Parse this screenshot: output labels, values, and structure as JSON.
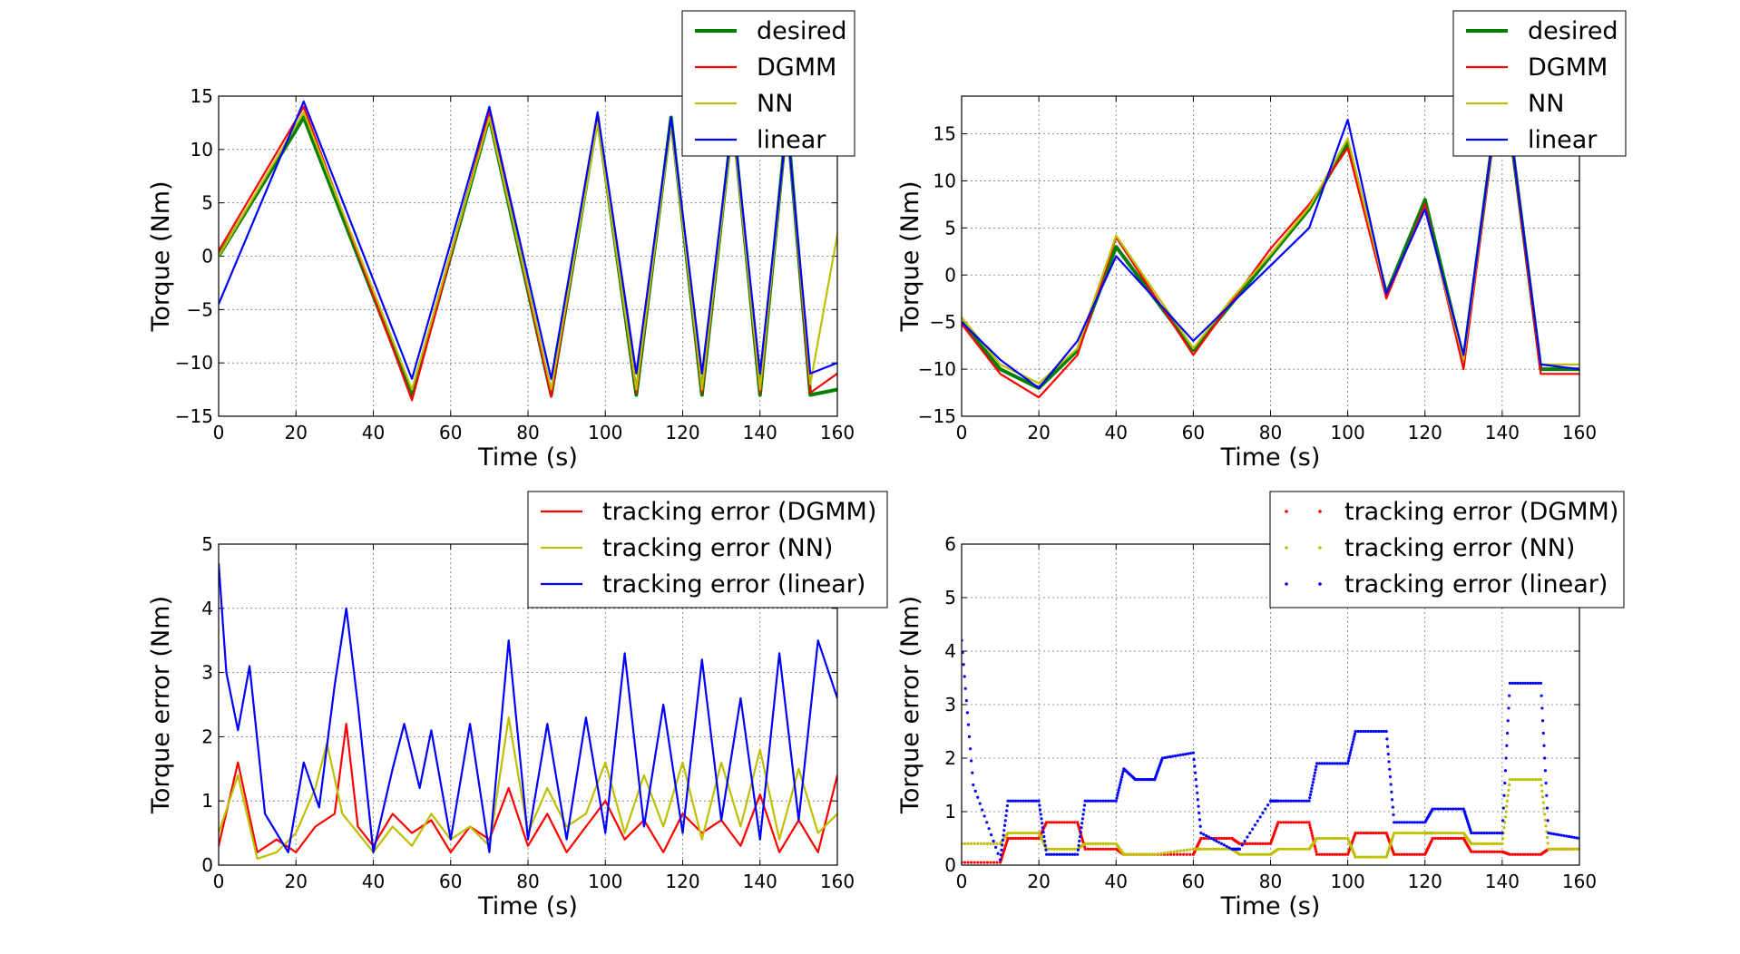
{
  "chart_data": [
    {
      "type": "line",
      "xlabel": "Time (s)",
      "ylabel": "Torque (Nm)",
      "xlim": [
        0,
        160
      ],
      "ylim": [
        -15,
        15
      ],
      "xticks": [
        "0",
        "20",
        "40",
        "60",
        "80",
        "100",
        "120",
        "140",
        "160"
      ],
      "yticks": [
        "−15",
        "−10",
        "−5",
        "0",
        "5",
        "10",
        "15"
      ],
      "grid": true,
      "legend": "top-right",
      "series": [
        {
          "name": "desired",
          "color": "#008000",
          "style": "thick-line",
          "x": [
            0,
            22,
            50,
            70,
            86,
            98,
            108,
            117,
            125,
            133,
            140,
            147,
            153,
            160
          ],
          "y": [
            0,
            13,
            -13,
            13,
            -13,
            13,
            -13,
            13,
            -13,
            13,
            -13,
            13,
            -13,
            -12.5
          ]
        },
        {
          "name": "DGMM",
          "color": "#ff0000",
          "style": "line",
          "x": [
            0,
            22,
            50,
            70,
            86,
            98,
            108,
            117,
            125,
            133,
            140,
            147,
            153,
            160
          ],
          "y": [
            0.5,
            14,
            -13.5,
            13.5,
            -13.2,
            13.2,
            -12.8,
            12.8,
            -12.8,
            12.8,
            -12.8,
            12.8,
            -12.8,
            -11
          ]
        },
        {
          "name": "NN",
          "color": "#bfbf00",
          "style": "line",
          "x": [
            0,
            22,
            50,
            70,
            86,
            98,
            108,
            117,
            125,
            133,
            140,
            147,
            153,
            160
          ],
          "y": [
            0,
            13.5,
            -12.5,
            13,
            -12.5,
            12.5,
            -12.5,
            12.5,
            -12.5,
            12.5,
            -12.5,
            12.5,
            -12,
            2
          ]
        },
        {
          "name": "linear",
          "color": "#0000ff",
          "style": "line",
          "x": [
            0,
            22,
            50,
            70,
            86,
            98,
            108,
            117,
            125,
            133,
            140,
            147,
            153,
            160
          ],
          "y": [
            -4.5,
            14.5,
            -11.5,
            14,
            -11.5,
            13.5,
            -11,
            13,
            -11,
            13,
            -11,
            12.5,
            -11,
            -10
          ]
        }
      ]
    },
    {
      "type": "line",
      "xlabel": "Time (s)",
      "ylabel": "Torque (Nm)",
      "xlim": [
        0,
        160
      ],
      "ylim": [
        -15,
        19
      ],
      "xticks": [
        "0",
        "20",
        "40",
        "60",
        "80",
        "100",
        "120",
        "140",
        "160"
      ],
      "yticks": [
        "−15",
        "−10",
        "−5",
        "0",
        "5",
        "10",
        "15"
      ],
      "grid": true,
      "legend": "top-right",
      "series": [
        {
          "name": "desired",
          "color": "#008000",
          "style": "thick-line",
          "x": [
            0,
            10,
            20,
            30,
            40,
            60,
            70,
            80,
            90,
            100,
            110,
            120,
            130,
            140,
            150,
            160
          ],
          "y": [
            -5,
            -10,
            -12,
            -8,
            3,
            -8,
            -3,
            2,
            7,
            14,
            -2,
            8,
            -9,
            22,
            -10,
            -10
          ]
        },
        {
          "name": "DGMM",
          "color": "#ff0000",
          "style": "line",
          "x": [
            0,
            10,
            20,
            30,
            40,
            60,
            70,
            80,
            90,
            100,
            110,
            120,
            130,
            140,
            150,
            160
          ],
          "y": [
            -5.2,
            -10.5,
            -13,
            -8.5,
            4,
            -8.5,
            -2.8,
            2.8,
            7.5,
            13.5,
            -2.5,
            7.5,
            -10,
            22,
            -10.5,
            -10.5
          ]
        },
        {
          "name": "NN",
          "color": "#bfbf00",
          "style": "line",
          "x": [
            0,
            10,
            20,
            30,
            40,
            60,
            70,
            80,
            90,
            100,
            110,
            120,
            130,
            140,
            150,
            160
          ],
          "y": [
            -4.5,
            -9.5,
            -11.5,
            -7.8,
            4.2,
            -7.8,
            -2.5,
            2.2,
            7.2,
            14.5,
            -2,
            7,
            -9,
            22,
            -9.5,
            -9.5
          ]
        },
        {
          "name": "linear",
          "color": "#0000ff",
          "style": "line",
          "x": [
            0,
            10,
            20,
            30,
            40,
            60,
            70,
            80,
            90,
            100,
            110,
            120,
            130,
            140,
            150,
            160
          ],
          "y": [
            -5,
            -9,
            -12,
            -7,
            2,
            -7,
            -3,
            1,
            5,
            16.5,
            -2,
            7,
            -8.5,
            22,
            -9.5,
            -10
          ]
        }
      ]
    },
    {
      "type": "line",
      "xlabel": "Time (s)",
      "ylabel": "Torque error (Nm)",
      "xlim": [
        0,
        160
      ],
      "ylim": [
        0,
        5
      ],
      "xticks": [
        "0",
        "20",
        "40",
        "60",
        "80",
        "100",
        "120",
        "140",
        "160"
      ],
      "yticks": [
        "0",
        "1",
        "2",
        "3",
        "4",
        "5"
      ],
      "grid": true,
      "legend": "top-right",
      "series": [
        {
          "name": "tracking error (DGMM)",
          "color": "#ff0000",
          "style": "line",
          "x": [
            0,
            5,
            10,
            15,
            20,
            25,
            30,
            33,
            36,
            40,
            45,
            50,
            55,
            60,
            65,
            70,
            75,
            80,
            85,
            90,
            95,
            100,
            105,
            110,
            115,
            120,
            125,
            130,
            135,
            140,
            145,
            150,
            155,
            160
          ],
          "y": [
            0.3,
            1.6,
            0.2,
            0.4,
            0.2,
            0.6,
            0.8,
            2.2,
            0.6,
            0.3,
            0.8,
            0.5,
            0.7,
            0.2,
            0.6,
            0.4,
            1.2,
            0.3,
            0.8,
            0.2,
            0.6,
            1,
            0.4,
            0.7,
            0.2,
            0.8,
            0.5,
            0.7,
            0.3,
            1.1,
            0.2,
            0.7,
            0.2,
            1.4
          ]
        },
        {
          "name": "tracking error (NN)",
          "color": "#bfbf00",
          "style": "line",
          "x": [
            0,
            5,
            10,
            15,
            20,
            25,
            28,
            32,
            36,
            40,
            45,
            50,
            55,
            60,
            65,
            70,
            75,
            80,
            85,
            90,
            95,
            100,
            105,
            110,
            115,
            120,
            125,
            130,
            135,
            140,
            145,
            150,
            155,
            160
          ],
          "y": [
            0.5,
            1.4,
            0.1,
            0.2,
            0.5,
            1.2,
            1.9,
            0.8,
            0.5,
            0.2,
            0.6,
            0.3,
            0.8,
            0.4,
            0.6,
            0.3,
            2.3,
            0.5,
            1.2,
            0.6,
            0.8,
            1.6,
            0.5,
            1.4,
            0.6,
            1.6,
            0.4,
            1.6,
            0.6,
            1.8,
            0.4,
            1.5,
            0.5,
            0.8
          ]
        },
        {
          "name": "tracking error (linear)",
          "color": "#0000ff",
          "style": "line",
          "x": [
            0,
            2,
            5,
            8,
            12,
            18,
            22,
            26,
            30,
            33,
            36,
            40,
            45,
            48,
            52,
            55,
            60,
            65,
            70,
            75,
            80,
            85,
            90,
            95,
            100,
            105,
            110,
            115,
            120,
            125,
            130,
            135,
            140,
            145,
            150,
            155,
            160
          ],
          "y": [
            4.7,
            3,
            2.1,
            3.1,
            0.8,
            0.2,
            1.6,
            0.9,
            2.8,
            4,
            2.5,
            0.2,
            1.5,
            2.2,
            1.2,
            2.1,
            0.4,
            2.2,
            0.2,
            3.5,
            0.4,
            2.2,
            0.4,
            2.3,
            0.5,
            3.3,
            0.6,
            2.5,
            0.5,
            3.2,
            0.7,
            2.6,
            0.4,
            3.3,
            0.7,
            3.5,
            2.6
          ]
        }
      ]
    },
    {
      "type": "scatter",
      "xlabel": "Time (s)",
      "ylabel": "Torque error (Nm)",
      "xlim": [
        0,
        160
      ],
      "ylim": [
        0,
        6
      ],
      "xticks": [
        "0",
        "20",
        "40",
        "60",
        "80",
        "100",
        "120",
        "140",
        "160"
      ],
      "yticks": [
        "0",
        "1",
        "2",
        "3",
        "4",
        "5",
        "6"
      ],
      "grid": true,
      "legend": "top-right",
      "series": [
        {
          "name": "tracking error (DGMM)",
          "color": "#ff0000",
          "style": "dots",
          "x": [
            0,
            10,
            12,
            20,
            22,
            30,
            32,
            40,
            42,
            50,
            60,
            62,
            70,
            72,
            80,
            82,
            90,
            92,
            100,
            102,
            110,
            112,
            120,
            122,
            130,
            132,
            140,
            142,
            150,
            152,
            160
          ],
          "y": [
            0.05,
            0.05,
            0.5,
            0.5,
            0.8,
            0.8,
            0.3,
            0.3,
            0.2,
            0.2,
            0.2,
            0.5,
            0.5,
            0.4,
            0.4,
            0.8,
            0.8,
            0.2,
            0.2,
            0.6,
            0.6,
            0.2,
            0.2,
            0.5,
            0.5,
            0.25,
            0.25,
            0.2,
            0.2,
            0.3,
            0.3
          ]
        },
        {
          "name": "tracking error (NN)",
          "color": "#bfbf00",
          "style": "dots",
          "x": [
            0,
            10,
            12,
            20,
            22,
            30,
            32,
            40,
            42,
            50,
            60,
            62,
            70,
            72,
            80,
            82,
            90,
            92,
            100,
            102,
            110,
            112,
            120,
            122,
            130,
            132,
            140,
            142,
            150,
            152,
            160
          ],
          "y": [
            0.4,
            0.4,
            0.6,
            0.6,
            0.3,
            0.3,
            0.4,
            0.4,
            0.2,
            0.2,
            0.3,
            0.3,
            0.3,
            0.2,
            0.2,
            0.3,
            0.3,
            0.5,
            0.5,
            0.15,
            0.15,
            0.6,
            0.6,
            0.6,
            0.6,
            0.4,
            0.4,
            1.6,
            1.6,
            0.3,
            0.3
          ]
        },
        {
          "name": "tracking error (linear)",
          "color": "#0000ff",
          "style": "dots",
          "x": [
            0,
            3,
            10,
            12,
            20,
            22,
            30,
            32,
            40,
            42,
            45,
            50,
            52,
            60,
            62,
            70,
            72,
            80,
            82,
            90,
            92,
            100,
            102,
            110,
            112,
            120,
            122,
            130,
            132,
            140,
            142,
            150,
            152,
            160
          ],
          "y": [
            4.2,
            1.5,
            0.1,
            1.2,
            1.2,
            0.2,
            0.2,
            1.2,
            1.2,
            1.8,
            1.6,
            1.6,
            2,
            2.1,
            0.6,
            0.3,
            0.3,
            1.2,
            1.2,
            1.2,
            1.9,
            1.9,
            2.5,
            2.5,
            0.8,
            0.8,
            1.05,
            1.05,
            0.6,
            0.6,
            3.4,
            3.4,
            0.6,
            0.5
          ]
        }
      ]
    }
  ]
}
